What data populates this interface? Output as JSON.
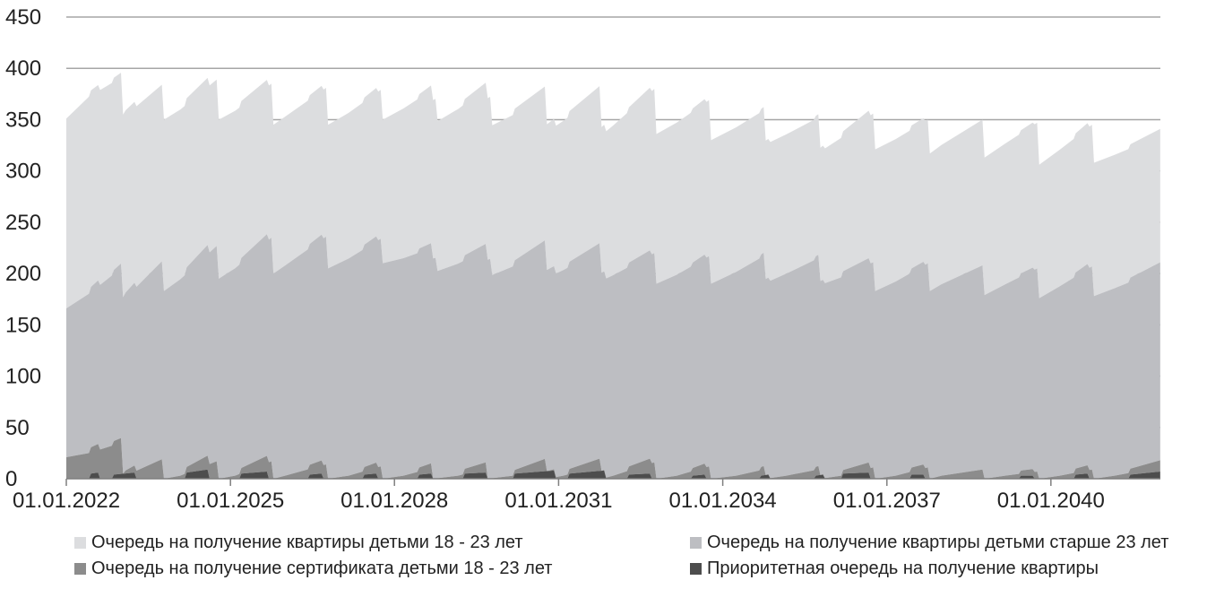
{
  "chart_data": {
    "type": "area",
    "stacked": true,
    "title": "",
    "xlabel": "",
    "ylabel": "",
    "ylim": [
      0,
      450
    ],
    "yticks": [
      "0",
      "50",
      "100",
      "150",
      "200",
      "250",
      "300",
      "350",
      "400",
      "450"
    ],
    "xticks": [
      "01.01.2022",
      "01.01.2025",
      "01.01.2028",
      "01.01.2031",
      "01.01.2034",
      "01.01.2037",
      "01.01.2040"
    ],
    "xlim": [
      "2022-01-01",
      "2042-01-01"
    ],
    "grid": "horizontal",
    "legend_position": "bottom",
    "series": [
      {
        "name": "Приоритетная очередь на получение квартиры",
        "color": "#4d4d4d",
        "points": [
          [
            "2022-01-01",
            0
          ],
          [
            "2022-06-01",
            0
          ],
          [
            "2022-06-15",
            5
          ],
          [
            "2022-08-01",
            6
          ],
          [
            "2022-08-15",
            0
          ],
          [
            "2022-11-01",
            0
          ],
          [
            "2022-11-15",
            4
          ],
          [
            "2023-04-01",
            6
          ],
          [
            "2023-04-15",
            0
          ],
          [
            "2024-03-01",
            0
          ],
          [
            "2024-03-15",
            6
          ],
          [
            "2024-08-01",
            9
          ],
          [
            "2024-08-15",
            0
          ],
          [
            "2025-03-01",
            0
          ],
          [
            "2025-03-15",
            5
          ],
          [
            "2025-09-01",
            7
          ],
          [
            "2025-09-15",
            0
          ],
          [
            "2026-06-01",
            0
          ],
          [
            "2026-06-15",
            4
          ],
          [
            "2026-09-01",
            5
          ],
          [
            "2026-09-15",
            0
          ],
          [
            "2027-06-01",
            0
          ],
          [
            "2027-06-15",
            4
          ],
          [
            "2027-09-01",
            5
          ],
          [
            "2027-09-15",
            0
          ],
          [
            "2028-06-01",
            0
          ],
          [
            "2028-06-15",
            4
          ],
          [
            "2028-09-01",
            5
          ],
          [
            "2028-09-15",
            0
          ],
          [
            "2029-04-01",
            0
          ],
          [
            "2029-04-15",
            5
          ],
          [
            "2029-09-01",
            6
          ],
          [
            "2029-09-15",
            0
          ],
          [
            "2030-03-01",
            0
          ],
          [
            "2030-03-15",
            5
          ],
          [
            "2030-12-01",
            8
          ],
          [
            "2030-12-15",
            0
          ],
          [
            "2031-03-01",
            0
          ],
          [
            "2031-03-15",
            5
          ],
          [
            "2031-11-01",
            8
          ],
          [
            "2031-11-15",
            0
          ],
          [
            "2032-04-01",
            0
          ],
          [
            "2032-04-15",
            4
          ],
          [
            "2032-09-01",
            5
          ],
          [
            "2032-09-15",
            0
          ],
          [
            "2033-06-01",
            0
          ],
          [
            "2033-06-15",
            3
          ],
          [
            "2033-09-01",
            4
          ],
          [
            "2033-09-15",
            0
          ],
          [
            "2034-09-01",
            0
          ],
          [
            "2034-09-15",
            3
          ],
          [
            "2034-11-01",
            4
          ],
          [
            "2034-11-15",
            0
          ],
          [
            "2035-09-01",
            0
          ],
          [
            "2035-09-15",
            3
          ],
          [
            "2035-11-01",
            4
          ],
          [
            "2035-11-15",
            0
          ],
          [
            "2036-03-01",
            0
          ],
          [
            "2036-03-15",
            5
          ],
          [
            "2036-09-01",
            6
          ],
          [
            "2036-09-15",
            0
          ],
          [
            "2037-06-01",
            0
          ],
          [
            "2037-06-15",
            4
          ],
          [
            "2037-09-01",
            4
          ],
          [
            "2037-09-15",
            0
          ],
          [
            "2039-06-01",
            0
          ],
          [
            "2039-06-15",
            3
          ],
          [
            "2039-09-01",
            3
          ],
          [
            "2039-09-15",
            0
          ],
          [
            "2040-06-01",
            0
          ],
          [
            "2040-06-15",
            4
          ],
          [
            "2040-09-01",
            5
          ],
          [
            "2040-09-15",
            0
          ],
          [
            "2041-06-01",
            0
          ],
          [
            "2041-06-15",
            4
          ],
          [
            "2041-12-31",
            7
          ]
        ]
      },
      {
        "name": "Очередь на получение сертификата детьми 18 - 23 лет",
        "color": "#8c8c8c",
        "points": [
          [
            "2022-01-01",
            21
          ],
          [
            "2022-06-01",
            25
          ],
          [
            "2023-01-01",
            35
          ],
          [
            "2023-01-15",
            0
          ],
          [
            "2023-02-01",
            3
          ],
          [
            "2023-10-01",
            19
          ],
          [
            "2023-10-15",
            0
          ],
          [
            "2024-02-01",
            3
          ],
          [
            "2024-10-01",
            17
          ],
          [
            "2024-10-15",
            0
          ],
          [
            "2025-02-01",
            3
          ],
          [
            "2025-10-01",
            17
          ],
          [
            "2025-10-15",
            0
          ],
          [
            "2026-01-01",
            3
          ],
          [
            "2026-10-01",
            14
          ],
          [
            "2026-10-15",
            0
          ],
          [
            "2027-03-01",
            3
          ],
          [
            "2027-10-01",
            12
          ],
          [
            "2027-10-15",
            0
          ],
          [
            "2028-03-01",
            3
          ],
          [
            "2028-09-01",
            10
          ],
          [
            "2028-09-15",
            0
          ],
          [
            "2029-03-01",
            3
          ],
          [
            "2029-09-01",
            10
          ],
          [
            "2029-09-15",
            0
          ],
          [
            "2030-03-01",
            3
          ],
          [
            "2030-10-01",
            12
          ],
          [
            "2030-10-15",
            0
          ],
          [
            "2031-02-01",
            3
          ],
          [
            "2031-10-01",
            12
          ],
          [
            "2031-10-15",
            0
          ],
          [
            "2032-01-01",
            3
          ],
          [
            "2032-10-01",
            16
          ],
          [
            "2032-10-15",
            0
          ],
          [
            "2033-03-01",
            3
          ],
          [
            "2033-10-01",
            12
          ],
          [
            "2033-10-15",
            0
          ],
          [
            "2034-04-01",
            3
          ],
          [
            "2034-10-01",
            9
          ],
          [
            "2034-10-15",
            0
          ],
          [
            "2035-03-01",
            3
          ],
          [
            "2035-10-01",
            9
          ],
          [
            "2035-10-15",
            0
          ],
          [
            "2036-03-01",
            3
          ],
          [
            "2036-10-01",
            11
          ],
          [
            "2036-10-15",
            0
          ],
          [
            "2037-03-01",
            3
          ],
          [
            "2037-10-01",
            11
          ],
          [
            "2037-10-15",
            0
          ],
          [
            "2038-01-01",
            3
          ],
          [
            "2038-10-01",
            9
          ],
          [
            "2038-10-15",
            0
          ],
          [
            "2039-03-01",
            3
          ],
          [
            "2039-10-01",
            7
          ],
          [
            "2039-10-15",
            0
          ],
          [
            "2040-03-01",
            3
          ],
          [
            "2040-10-01",
            9
          ],
          [
            "2040-10-15",
            0
          ],
          [
            "2041-03-01",
            3
          ],
          [
            "2041-12-31",
            11
          ]
        ]
      },
      {
        "name": "Очередь на получение квартиры детьми старше 23 лет",
        "color": "#bdbec2",
        "points": [
          [
            "2022-01-01",
            145
          ],
          [
            "2023-01-01",
            170
          ],
          [
            "2023-01-15",
            172
          ],
          [
            "2023-10-01",
            193
          ],
          [
            "2023-10-15",
            183
          ],
          [
            "2024-10-01",
            210
          ],
          [
            "2024-10-15",
            195
          ],
          [
            "2025-10-01",
            218
          ],
          [
            "2025-10-15",
            200
          ],
          [
            "2026-10-01",
            222
          ],
          [
            "2026-10-15",
            205
          ],
          [
            "2027-10-01",
            222
          ],
          [
            "2027-10-15",
            210
          ],
          [
            "2028-10-01",
            215
          ],
          [
            "2028-10-15",
            202
          ],
          [
            "2029-10-01",
            214
          ],
          [
            "2029-10-15",
            198
          ],
          [
            "2030-10-01",
            213
          ],
          [
            "2030-10-15",
            196
          ],
          [
            "2031-10-01",
            210
          ],
          [
            "2031-10-15",
            193
          ],
          [
            "2032-10-01",
            204
          ],
          [
            "2032-10-15",
            190
          ],
          [
            "2033-10-01",
            205
          ],
          [
            "2033-10-15",
            190
          ],
          [
            "2034-10-01",
            208
          ],
          [
            "2034-10-15",
            191
          ],
          [
            "2035-10-01",
            206
          ],
          [
            "2035-10-15",
            189
          ],
          [
            "2036-10-01",
            200
          ],
          [
            "2036-10-15",
            183
          ],
          [
            "2037-10-01",
            199
          ],
          [
            "2037-10-15",
            183
          ],
          [
            "2038-10-01",
            199
          ],
          [
            "2038-10-15",
            179
          ],
          [
            "2039-10-01",
            198
          ],
          [
            "2039-10-15",
            176
          ],
          [
            "2040-10-01",
            198
          ],
          [
            "2040-10-15",
            178
          ],
          [
            "2041-12-31",
            193
          ]
        ]
      },
      {
        "name": "Очередь на получение квартиры детьми 18 - 23 лет",
        "color": "#dcdddf",
        "points": [
          [
            "2022-01-01",
            185
          ],
          [
            "2022-06-01",
            192
          ],
          [
            "2023-01-01",
            186
          ],
          [
            "2023-01-15",
            178
          ],
          [
            "2023-10-01",
            172
          ],
          [
            "2023-10-15",
            167
          ],
          [
            "2024-10-01",
            162
          ],
          [
            "2024-10-15",
            155
          ],
          [
            "2025-10-01",
            150
          ],
          [
            "2025-10-15",
            145
          ],
          [
            "2026-10-01",
            145
          ],
          [
            "2026-10-15",
            140
          ],
          [
            "2027-10-01",
            145
          ],
          [
            "2027-10-15",
            140
          ],
          [
            "2028-10-01",
            155
          ],
          [
            "2028-10-15",
            146
          ],
          [
            "2029-10-01",
            158
          ],
          [
            "2029-10-15",
            146
          ],
          [
            "2030-10-01",
            150
          ],
          [
            "2030-10-15",
            142
          ],
          [
            "2031-10-01",
            153
          ],
          [
            "2031-10-15",
            142
          ],
          [
            "2032-10-01",
            160
          ],
          [
            "2032-10-15",
            146
          ],
          [
            "2033-10-01",
            152
          ],
          [
            "2033-10-15",
            140
          ],
          [
            "2034-10-01",
            142
          ],
          [
            "2034-10-15",
            135
          ],
          [
            "2035-10-01",
            137
          ],
          [
            "2035-10-15",
            130
          ],
          [
            "2036-10-01",
            145
          ],
          [
            "2036-10-15",
            138
          ],
          [
            "2037-10-01",
            140
          ],
          [
            "2037-10-15",
            134
          ],
          [
            "2038-10-01",
            142
          ],
          [
            "2038-10-15",
            134
          ],
          [
            "2039-10-01",
            142
          ],
          [
            "2039-10-15",
            130
          ],
          [
            "2040-10-01",
            138
          ],
          [
            "2040-10-15",
            130
          ],
          [
            "2041-12-31",
            130
          ]
        ]
      }
    ]
  }
}
